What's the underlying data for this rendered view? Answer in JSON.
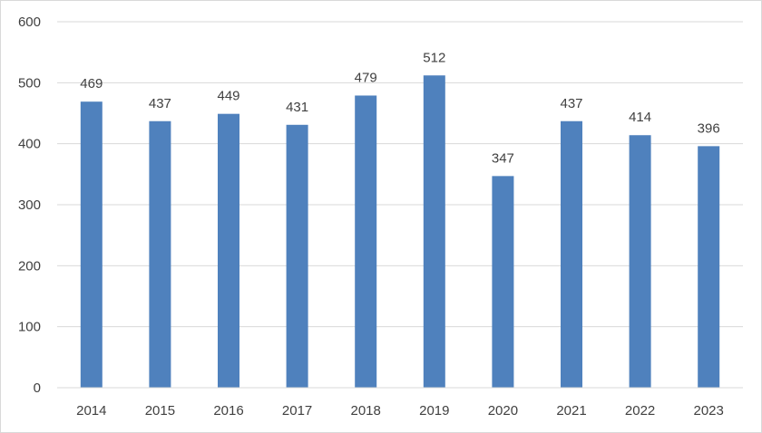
{
  "chart_data": {
    "type": "bar",
    "title": "",
    "xlabel": "",
    "ylabel": "",
    "categories": [
      "2014",
      "2015",
      "2016",
      "2017",
      "2018",
      "2019",
      "2020",
      "2021",
      "2022",
      "2023"
    ],
    "values": [
      469,
      437,
      449,
      431,
      479,
      512,
      347,
      437,
      414,
      396
    ],
    "ylim": [
      0,
      600
    ],
    "yticks": [
      0,
      100,
      200,
      300,
      400,
      500,
      600
    ],
    "grid": true,
    "legend": "none",
    "data_labels": true,
    "bar_color": "#4f81bd",
    "grid_color": "#d9d9d9",
    "text_color": "#404040"
  }
}
